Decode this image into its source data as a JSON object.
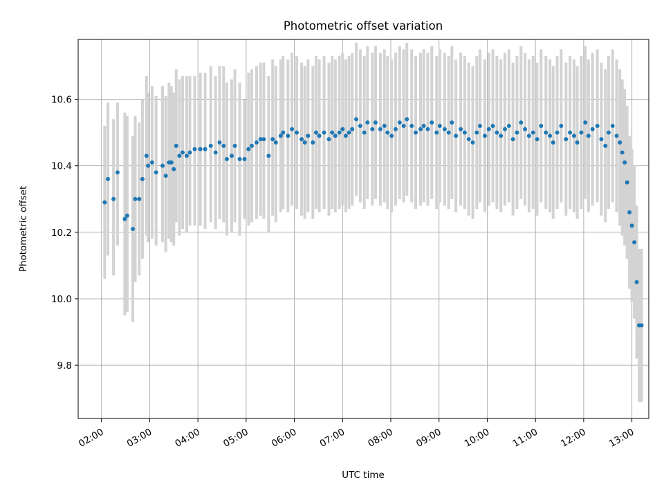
{
  "chart_data": {
    "type": "scatter",
    "title": "Photometric offset variation",
    "xlabel": "UTC time",
    "ylabel": "Photometric offset",
    "x_ticks": [
      "02:00",
      "03:00",
      "04:00",
      "05:00",
      "06:00",
      "07:00",
      "08:00",
      "09:00",
      "10:00",
      "11:00",
      "12:00",
      "13:00"
    ],
    "y_ticks": [
      "9.8",
      "10.0",
      "10.2",
      "10.4",
      "10.6"
    ],
    "xlim": [
      "01:31",
      "13:21"
    ],
    "ylim": [
      9.64,
      10.78
    ],
    "grid": true,
    "colors": {
      "point": "#1f77b4",
      "errorbar": "#d3d3d3",
      "grid": "#b0b0b0"
    },
    "series": [
      {
        "x": [
          "02:04",
          "02:08",
          "02:15",
          "02:20",
          "02:29",
          "02:32",
          "02:39",
          "02:42",
          "02:47",
          "02:51",
          "02:56",
          "02:58",
          "03:03",
          "03:08",
          "03:16",
          "03:20",
          "03:24",
          "03:27",
          "03:30",
          "03:33",
          "03:37",
          "03:41",
          "03:46",
          "03:50",
          "03:56",
          "04:03",
          "04:09",
          "04:16",
          "04:22",
          "04:27",
          "04:32",
          "04:36",
          "04:42",
          "04:46",
          "04:52",
          "04:58",
          "05:03",
          "05:07",
          "05:13",
          "05:18",
          "05:22",
          "05:28",
          "05:33",
          "05:37",
          "05:43",
          "05:46",
          "05:52",
          "05:57",
          "06:03",
          "06:09",
          "06:13",
          "06:17",
          "06:23",
          "06:27",
          "06:31",
          "06:37",
          "06:43",
          "06:47",
          "06:51",
          "06:56",
          "07:00",
          "07:04",
          "07:08",
          "07:12",
          "07:17",
          "07:22",
          "07:27",
          "07:31",
          "07:37",
          "07:41",
          "07:47",
          "07:52",
          "07:56",
          "08:01",
          "08:06",
          "08:11",
          "08:16",
          "08:20",
          "08:26",
          "08:31",
          "08:37",
          "08:41",
          "08:46",
          "08:51",
          "08:57",
          "09:01",
          "09:07",
          "09:12",
          "09:16",
          "09:21",
          "09:27",
          "09:32",
          "09:37",
          "09:42",
          "09:47",
          "09:51",
          "09:57",
          "10:02",
          "10:07",
          "10:12",
          "10:17",
          "10:22",
          "10:27",
          "10:32",
          "10:37",
          "10:42",
          "10:47",
          "10:52",
          "10:57",
          "11:02",
          "11:07",
          "11:13",
          "11:18",
          "11:22",
          "11:27",
          "11:32",
          "11:38",
          "11:43",
          "11:48",
          "11:52",
          "11:57",
          "12:02",
          "12:06",
          "12:11",
          "12:17",
          "12:22",
          "12:27",
          "12:31",
          "12:36",
          "12:41",
          "12:45",
          "12:48",
          "12:51",
          "12:54",
          "12:57",
          "13:00",
          "13:03",
          "13:06",
          "13:09",
          "13:12"
        ],
        "y": [
          10.29,
          10.36,
          10.3,
          10.38,
          10.24,
          10.25,
          10.21,
          10.3,
          10.3,
          10.36,
          10.43,
          10.4,
          10.41,
          10.38,
          10.4,
          10.37,
          10.41,
          10.41,
          10.39,
          10.46,
          10.43,
          10.44,
          10.43,
          10.44,
          10.45,
          10.45,
          10.45,
          10.46,
          10.44,
          10.47,
          10.46,
          10.42,
          10.43,
          10.46,
          10.42,
          10.42,
          10.45,
          10.46,
          10.47,
          10.48,
          10.48,
          10.43,
          10.48,
          10.47,
          10.49,
          10.5,
          10.49,
          10.51,
          10.5,
          10.48,
          10.47,
          10.49,
          10.47,
          10.5,
          10.49,
          10.5,
          10.48,
          10.5,
          10.49,
          10.5,
          10.51,
          10.49,
          10.5,
          10.51,
          10.54,
          10.52,
          10.5,
          10.53,
          10.51,
          10.53,
          10.51,
          10.52,
          10.5,
          10.49,
          10.51,
          10.53,
          10.52,
          10.54,
          10.52,
          10.5,
          10.51,
          10.52,
          10.51,
          10.53,
          10.5,
          10.52,
          10.51,
          10.5,
          10.53,
          10.49,
          10.51,
          10.5,
          10.48,
          10.47,
          10.5,
          10.52,
          10.49,
          10.51,
          10.52,
          10.5,
          10.49,
          10.51,
          10.52,
          10.48,
          10.5,
          10.53,
          10.51,
          10.49,
          10.5,
          10.48,
          10.52,
          10.5,
          10.49,
          10.47,
          10.5,
          10.52,
          10.48,
          10.5,
          10.49,
          10.47,
          10.5,
          10.53,
          10.49,
          10.51,
          10.52,
          10.48,
          10.46,
          10.5,
          10.52,
          10.49,
          10.47,
          10.44,
          10.41,
          10.35,
          10.26,
          10.22,
          10.17,
          10.05,
          9.92,
          9.92
        ]
      }
    ],
    "errorbars": [
      [
        10.06,
        10.52
      ],
      [
        10.13,
        10.59
      ],
      [
        10.07,
        10.54
      ],
      [
        10.16,
        10.59
      ],
      [
        9.95,
        10.56
      ],
      [
        9.96,
        10.55
      ],
      [
        9.93,
        10.49
      ],
      [
        10.05,
        10.55
      ],
      [
        10.07,
        10.53
      ],
      [
        10.12,
        10.6
      ],
      [
        10.19,
        10.67
      ],
      [
        10.17,
        10.62
      ],
      [
        10.18,
        10.64
      ],
      [
        10.16,
        10.61
      ],
      [
        10.17,
        10.64
      ],
      [
        10.14,
        10.61
      ],
      [
        10.18,
        10.65
      ],
      [
        10.17,
        10.64
      ],
      [
        10.16,
        10.62
      ],
      [
        10.23,
        10.69
      ],
      [
        10.19,
        10.66
      ],
      [
        10.21,
        10.67
      ],
      [
        10.2,
        10.67
      ],
      [
        10.22,
        10.67
      ],
      [
        10.22,
        10.67
      ],
      [
        10.22,
        10.68
      ],
      [
        10.21,
        10.68
      ],
      [
        10.23,
        10.7
      ],
      [
        10.21,
        10.67
      ],
      [
        10.24,
        10.7
      ],
      [
        10.23,
        10.7
      ],
      [
        10.19,
        10.65
      ],
      [
        10.2,
        10.66
      ],
      [
        10.23,
        10.69
      ],
      [
        10.19,
        10.65
      ],
      [
        10.24,
        10.6
      ],
      [
        10.22,
        10.68
      ],
      [
        10.23,
        10.69
      ],
      [
        10.24,
        10.7
      ],
      [
        10.25,
        10.71
      ],
      [
        10.24,
        10.71
      ],
      [
        10.2,
        10.67
      ],
      [
        10.25,
        10.72
      ],
      [
        10.23,
        10.7
      ],
      [
        10.26,
        10.72
      ],
      [
        10.27,
        10.73
      ],
      [
        10.26,
        10.72
      ],
      [
        10.28,
        10.74
      ],
      [
        10.27,
        10.73
      ],
      [
        10.25,
        10.71
      ],
      [
        10.24,
        10.7
      ],
      [
        10.26,
        10.72
      ],
      [
        10.24,
        10.7
      ],
      [
        10.27,
        10.73
      ],
      [
        10.26,
        10.72
      ],
      [
        10.27,
        10.73
      ],
      [
        10.25,
        10.71
      ],
      [
        10.27,
        10.73
      ],
      [
        10.26,
        10.72
      ],
      [
        10.27,
        10.73
      ],
      [
        10.28,
        10.74
      ],
      [
        10.26,
        10.72
      ],
      [
        10.27,
        10.73
      ],
      [
        10.28,
        10.74
      ],
      [
        10.31,
        10.77
      ],
      [
        10.29,
        10.75
      ],
      [
        10.27,
        10.73
      ],
      [
        10.3,
        10.76
      ],
      [
        10.28,
        10.74
      ],
      [
        10.3,
        10.76
      ],
      [
        10.28,
        10.74
      ],
      [
        10.29,
        10.75
      ],
      [
        10.27,
        10.73
      ],
      [
        10.26,
        10.72
      ],
      [
        10.28,
        10.74
      ],
      [
        10.3,
        10.76
      ],
      [
        10.29,
        10.75
      ],
      [
        10.31,
        10.77
      ],
      [
        10.29,
        10.75
      ],
      [
        10.27,
        10.73
      ],
      [
        10.28,
        10.74
      ],
      [
        10.29,
        10.75
      ],
      [
        10.28,
        10.74
      ],
      [
        10.3,
        10.76
      ],
      [
        10.27,
        10.73
      ],
      [
        10.29,
        10.75
      ],
      [
        10.28,
        10.74
      ],
      [
        10.27,
        10.73
      ],
      [
        10.3,
        10.76
      ],
      [
        10.26,
        10.72
      ],
      [
        10.28,
        10.74
      ],
      [
        10.27,
        10.73
      ],
      [
        10.25,
        10.71
      ],
      [
        10.24,
        10.7
      ],
      [
        10.27,
        10.73
      ],
      [
        10.29,
        10.75
      ],
      [
        10.26,
        10.72
      ],
      [
        10.28,
        10.74
      ],
      [
        10.29,
        10.75
      ],
      [
        10.27,
        10.73
      ],
      [
        10.26,
        10.72
      ],
      [
        10.28,
        10.74
      ],
      [
        10.29,
        10.75
      ],
      [
        10.25,
        10.71
      ],
      [
        10.27,
        10.73
      ],
      [
        10.3,
        10.76
      ],
      [
        10.28,
        10.74
      ],
      [
        10.26,
        10.72
      ],
      [
        10.27,
        10.73
      ],
      [
        10.25,
        10.71
      ],
      [
        10.29,
        10.75
      ],
      [
        10.27,
        10.73
      ],
      [
        10.26,
        10.72
      ],
      [
        10.24,
        10.7
      ],
      [
        10.27,
        10.73
      ],
      [
        10.29,
        10.75
      ],
      [
        10.25,
        10.71
      ],
      [
        10.27,
        10.73
      ],
      [
        10.26,
        10.72
      ],
      [
        10.24,
        10.7
      ],
      [
        10.27,
        10.73
      ],
      [
        10.3,
        10.76
      ],
      [
        10.26,
        10.72
      ],
      [
        10.28,
        10.74
      ],
      [
        10.29,
        10.75
      ],
      [
        10.25,
        10.71
      ],
      [
        10.23,
        10.69
      ],
      [
        10.27,
        10.73
      ],
      [
        10.29,
        10.75
      ],
      [
        10.26,
        10.72
      ],
      [
        10.22,
        10.69
      ],
      [
        10.19,
        10.66
      ],
      [
        10.16,
        10.63
      ],
      [
        10.12,
        10.58
      ],
      [
        10.03,
        10.49
      ],
      [
        9.99,
        10.45
      ],
      [
        9.94,
        10.4
      ],
      [
        9.82,
        10.28
      ],
      [
        9.69,
        10.15
      ],
      [
        9.69,
        10.15
      ]
    ]
  }
}
